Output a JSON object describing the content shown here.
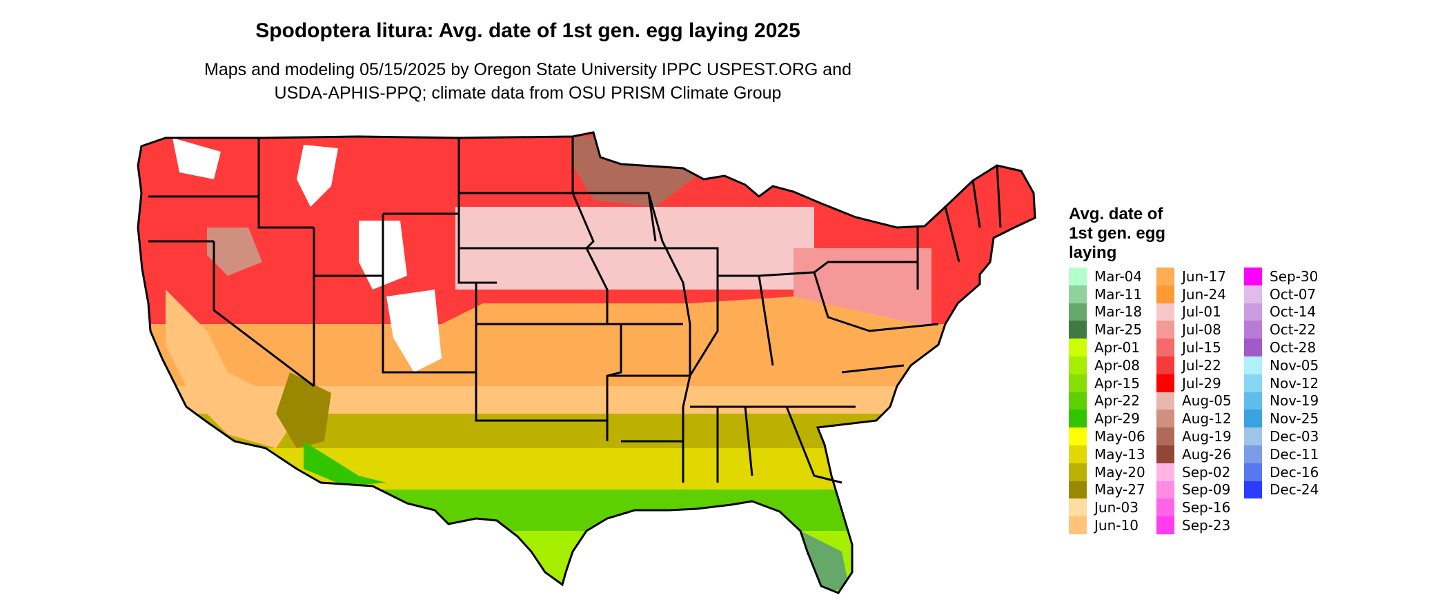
{
  "title": "Spodoptera litura: Avg. date of 1st gen. egg laying 2025",
  "subtitle_line1": "Maps and modeling 05/15/2025 by Oregon State University IPPC USPEST.ORG and",
  "subtitle_line2": "USDA-APHIS-PPQ; climate data from OSU PRISM Climate Group",
  "legend": {
    "title_line1": "Avg. date of",
    "title_line2": "1st gen. egg",
    "title_line3": "laying",
    "columns": [
      [
        {
          "label": "Mar-04",
          "color": "#b3ffcc"
        },
        {
          "label": "Mar-11",
          "color": "#8fd39a"
        },
        {
          "label": "Mar-18",
          "color": "#66a86a"
        },
        {
          "label": "Mar-25",
          "color": "#3f7a43"
        },
        {
          "label": "Apr-01",
          "color": "#ccff00"
        },
        {
          "label": "Apr-08",
          "color": "#a6ee00"
        },
        {
          "label": "Apr-15",
          "color": "#86df00"
        },
        {
          "label": "Apr-22",
          "color": "#5ed000"
        },
        {
          "label": "Apr-29",
          "color": "#33c400"
        },
        {
          "label": "May-06",
          "color": "#ffff00"
        },
        {
          "label": "May-13",
          "color": "#e0d800"
        },
        {
          "label": "May-20",
          "color": "#bcb000"
        },
        {
          "label": "May-27",
          "color": "#9a8800"
        },
        {
          "label": "Jun-03",
          "color": "#ffdca0"
        },
        {
          "label": "Jun-10",
          "color": "#ffc47a"
        }
      ],
      [
        {
          "label": "Jun-17",
          "color": "#ffad55"
        },
        {
          "label": "Jun-24",
          "color": "#ff9933"
        },
        {
          "label": "Jul-01",
          "color": "#f7c8c8"
        },
        {
          "label": "Jul-08",
          "color": "#f59898"
        },
        {
          "label": "Jul-15",
          "color": "#f56a6a"
        },
        {
          "label": "Jul-22",
          "color": "#f53a3a"
        },
        {
          "label": "Jul-29",
          "color": "#ff0000"
        },
        {
          "label": "Aug-05",
          "color": "#e8b8b0"
        },
        {
          "label": "Aug-12",
          "color": "#cf9080"
        },
        {
          "label": "Aug-19",
          "color": "#b06a5a"
        },
        {
          "label": "Aug-26",
          "color": "#944636"
        },
        {
          "label": "Sep-02",
          "color": "#ffb4e6"
        },
        {
          "label": "Sep-09",
          "color": "#ff8ce0"
        },
        {
          "label": "Sep-16",
          "color": "#ff64e8"
        },
        {
          "label": "Sep-23",
          "color": "#ff3cf0"
        }
      ],
      [
        {
          "label": "Sep-30",
          "color": "#ff00ff"
        },
        {
          "label": "Oct-07",
          "color": "#e0bce8"
        },
        {
          "label": "Oct-14",
          "color": "#cc9ce0"
        },
        {
          "label": "Oct-22",
          "color": "#b97cd6"
        },
        {
          "label": "Oct-28",
          "color": "#a35ac8"
        },
        {
          "label": "Nov-05",
          "color": "#b0f0ff"
        },
        {
          "label": "Nov-12",
          "color": "#88d6f4"
        },
        {
          "label": "Nov-19",
          "color": "#60bceb"
        },
        {
          "label": "Nov-25",
          "color": "#3aa2e0"
        },
        {
          "label": "Dec-03",
          "color": "#a0c4e8"
        },
        {
          "label": "Dec-11",
          "color": "#7c9ce8"
        },
        {
          "label": "Dec-16",
          "color": "#5878f0"
        },
        {
          "label": "Dec-24",
          "color": "#2c3cff"
        }
      ]
    ]
  }
}
